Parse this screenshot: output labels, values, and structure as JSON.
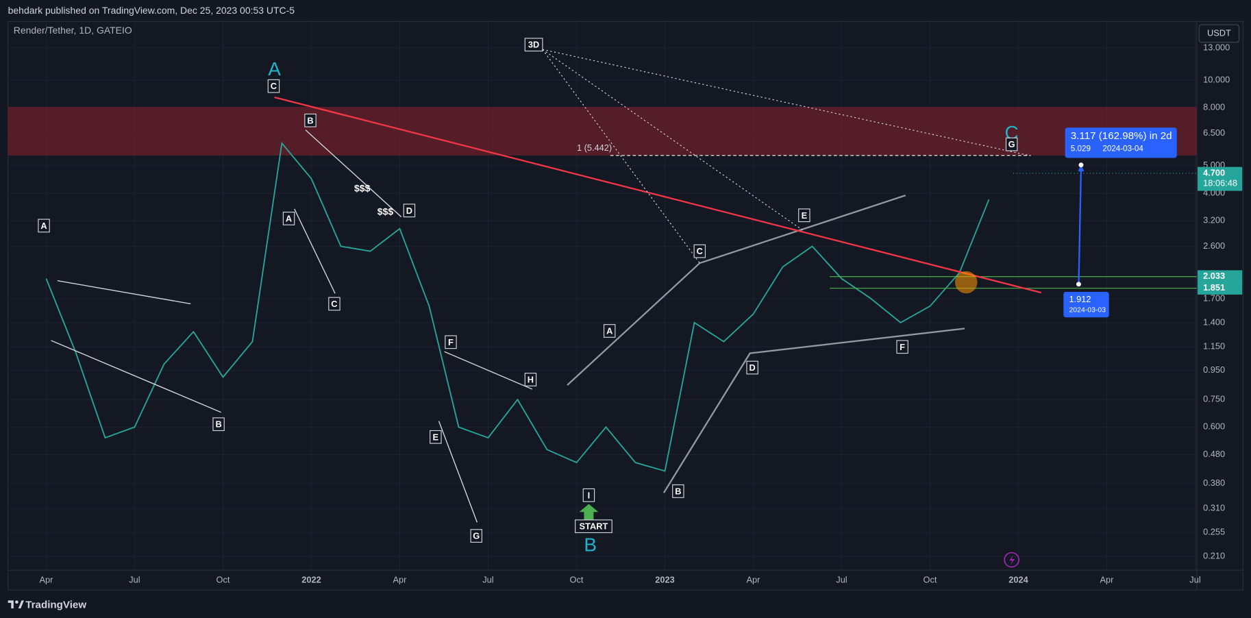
{
  "header": {
    "publisher": "behdark published on TradingView.com, Dec 25, 2023 00:53 UTC-5"
  },
  "footer": {
    "brand": "TradingView"
  },
  "chart_data": {
    "type": "line",
    "title": "Render/Tether, 1D, GATEIO",
    "currency": "USDT",
    "log_scale": true,
    "grid": true,
    "color": "#26a69a",
    "x": [
      "2021-04",
      "2021-05",
      "2021-06",
      "2021-07",
      "2021-08",
      "2021-09",
      "2021-10",
      "2021-11",
      "2021-12",
      "2022-01",
      "2022-02",
      "2022-03",
      "2022-04",
      "2022-05",
      "2022-06",
      "2022-07",
      "2022-08",
      "2022-09",
      "2022-10",
      "2022-11",
      "2022-12",
      "2023-01",
      "2023-02",
      "2023-03",
      "2023-04",
      "2023-05",
      "2023-06",
      "2023-07",
      "2023-08",
      "2023-09",
      "2023-10",
      "2023-11",
      "2023-12"
    ],
    "values": [
      2.0,
      1.1,
      0.55,
      0.6,
      1.0,
      1.3,
      0.9,
      1.2,
      6.0,
      4.5,
      2.6,
      2.5,
      3.0,
      1.6,
      0.6,
      0.55,
      0.75,
      0.5,
      0.45,
      0.6,
      0.45,
      0.42,
      1.4,
      1.2,
      1.5,
      2.2,
      2.6,
      2.0,
      1.7,
      1.4,
      1.6,
      2.1,
      3.8
    ],
    "xlim": [
      "2021-03",
      "2024-07"
    ],
    "xticks": [
      {
        "value": "2021-04",
        "label": "Apr"
      },
      {
        "value": "2021-07",
        "label": "Jul"
      },
      {
        "value": "2021-10",
        "label": "Oct"
      },
      {
        "value": "2022-01",
        "label": "2022"
      },
      {
        "value": "2022-04",
        "label": "Apr"
      },
      {
        "value": "2022-07",
        "label": "Jul"
      },
      {
        "value": "2022-10",
        "label": "Oct"
      },
      {
        "value": "2023-01",
        "label": "2023"
      },
      {
        "value": "2023-04",
        "label": "Apr"
      },
      {
        "value": "2023-07",
        "label": "Jul"
      },
      {
        "value": "2023-10",
        "label": "Oct"
      },
      {
        "value": "2024-01",
        "label": "2024"
      },
      {
        "value": "2024-04",
        "label": "Apr"
      },
      {
        "value": "2024-07",
        "label": "Jul"
      }
    ],
    "ylim": [
      0.188,
      16.1
    ],
    "yticks": [
      {
        "value": 13,
        "label": "13.000"
      },
      {
        "value": 10,
        "label": "10.000"
      },
      {
        "value": 8,
        "label": "8.000"
      },
      {
        "value": 6.5,
        "label": "6.500"
      },
      {
        "value": 5,
        "label": "5.000"
      },
      {
        "value": 4,
        "label": "4.000"
      },
      {
        "value": 3.2,
        "label": "3.200"
      },
      {
        "value": 2.6,
        "label": "2.600"
      },
      {
        "value": 1.7,
        "label": "1.700"
      },
      {
        "value": 1.4,
        "label": "1.400"
      },
      {
        "value": 1.15,
        "label": "1.150"
      },
      {
        "value": 0.95,
        "label": "0.950"
      },
      {
        "value": 0.75,
        "label": "0.750"
      },
      {
        "value": 0.6,
        "label": "0.600"
      },
      {
        "value": 0.48,
        "label": "0.480"
      },
      {
        "value": 0.38,
        "label": "0.380"
      },
      {
        "value": 0.31,
        "label": "0.310"
      },
      {
        "value": 0.255,
        "label": "0.255"
      },
      {
        "value": 0.21,
        "label": "0.210"
      }
    ],
    "last_price": {
      "value": 4.7,
      "label": "4.700"
    },
    "countdown": "18:06:48",
    "levels": [
      2.033,
      1.851
    ],
    "fib_label": "1 (5.442)",
    "measure": {
      "change": "3.117 (162.98%) in 2d",
      "target": 5.029,
      "target_date": "2024-03-04",
      "origin": 1.912,
      "origin_date": "2024-03-03"
    },
    "waves": [
      "A",
      "B",
      "C"
    ],
    "labels": [
      "C",
      "B",
      "A",
      "C",
      "D",
      "A",
      "B",
      "F",
      "H",
      "E",
      "G",
      "A",
      "I",
      "B",
      "C",
      "D",
      "E",
      "F",
      "G"
    ],
    "money": [
      "$$$",
      "$$$"
    ],
    "timeframe": "3D",
    "start": "START"
  }
}
